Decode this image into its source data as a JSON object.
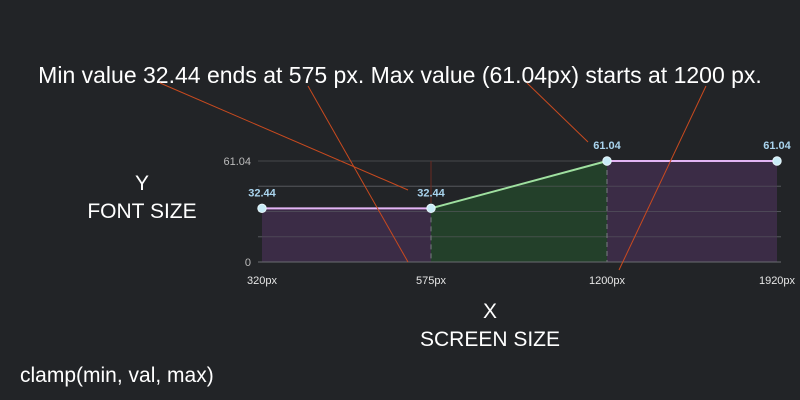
{
  "annotation": "Min value 32.44 ends at 575 px. Max value (61.04px) starts at 1200 px.",
  "axis_y": {
    "title": "Y",
    "subtitle": "FONT SIZE"
  },
  "axis_x": {
    "title": "X",
    "subtitle": "SCREEN SIZE"
  },
  "formula": "clamp(min, val, max)",
  "colors": {
    "background": "#222427",
    "flat_line": "#e3b5f5",
    "flat_fill": "#3b2c46",
    "ramp_line": "#9fe0a0",
    "ramp_fill": "#23402a",
    "point": "#c8ecf7",
    "annotation_line": "#c94a1f"
  },
  "chart_data": {
    "type": "line",
    "x": [
      320,
      575,
      1200,
      1920
    ],
    "y": [
      32.44,
      32.44,
      61.04,
      61.04
    ],
    "x_tick_labels": [
      "320px",
      "575px",
      "1200px",
      "1920px"
    ],
    "y_tick_labels": [
      "61.04",
      "0"
    ],
    "data_labels": [
      "32.44",
      "32.44",
      "61.04",
      "61.04"
    ],
    "ylim": [
      0,
      61.04
    ],
    "grid": true
  }
}
